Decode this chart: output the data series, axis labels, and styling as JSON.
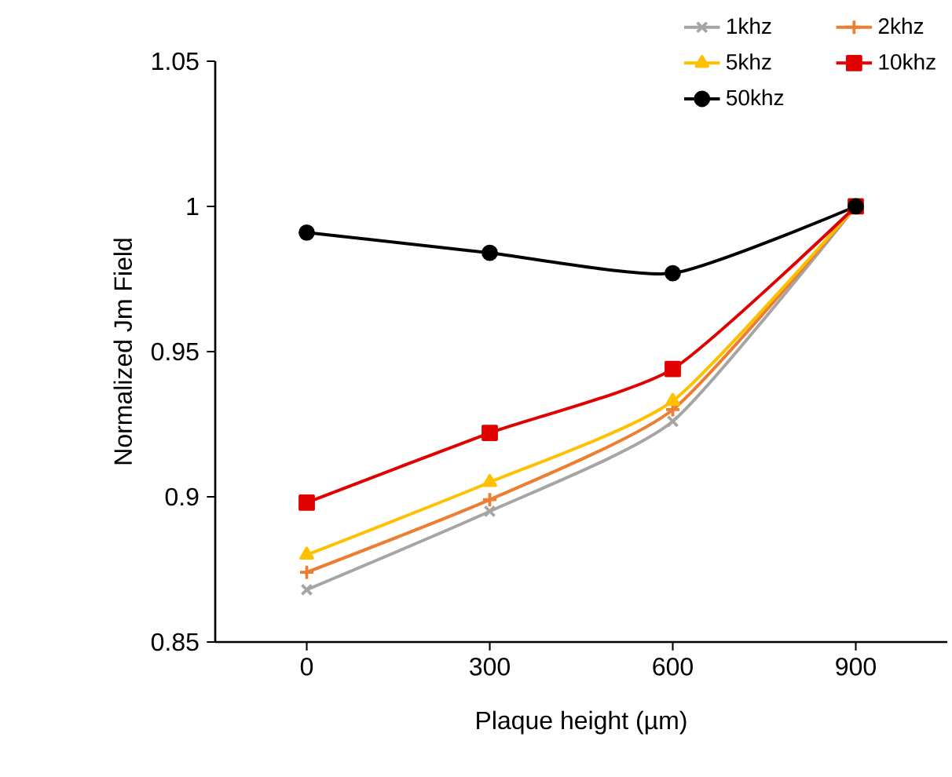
{
  "chart_data": {
    "type": "line",
    "xlabel": "Plaque height (µm)",
    "ylabel": "Normalized Jm Field",
    "x": [
      0,
      300,
      600,
      900
    ],
    "xlim": [
      -150,
      1050
    ],
    "xticks": [
      0,
      300,
      600,
      900
    ],
    "ylim": [
      0.85,
      1.05
    ],
    "yticks": [
      0.85,
      0.9,
      0.95,
      1,
      1.05
    ],
    "grid": false,
    "legend": "top right",
    "line_style": "solid",
    "series": [
      {
        "name": "1khz",
        "color": "#a5a5a5",
        "marker": "cross",
        "values": [
          0.868,
          0.895,
          0.926,
          1
        ]
      },
      {
        "name": "2khz",
        "color": "#ed7d31",
        "marker": "plus",
        "values": [
          0.874,
          0.899,
          0.93,
          1
        ]
      },
      {
        "name": "5khz",
        "color": "#ffc000",
        "marker": "triangle",
        "values": [
          0.88,
          0.905,
          0.933,
          1
        ]
      },
      {
        "name": "10khz",
        "color": "#e00000",
        "marker": "square",
        "values": [
          0.898,
          0.922,
          0.944,
          1
        ]
      },
      {
        "name": "50khz",
        "color": "#000000",
        "marker": "circle",
        "values": [
          0.991,
          0.984,
          0.977,
          1
        ]
      }
    ]
  }
}
